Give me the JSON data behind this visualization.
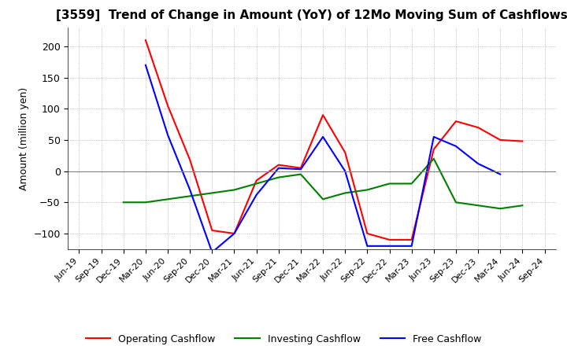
{
  "title": "[3559]  Trend of Change in Amount (YoY) of 12Mo Moving Sum of Cashflows",
  "ylabel": "Amount (million yen)",
  "x_labels": [
    "Jun-19",
    "Sep-19",
    "Dec-19",
    "Mar-20",
    "Jun-20",
    "Sep-20",
    "Dec-20",
    "Mar-21",
    "Jun-21",
    "Sep-21",
    "Dec-21",
    "Mar-22",
    "Jun-22",
    "Sep-22",
    "Dec-22",
    "Mar-23",
    "Jun-23",
    "Sep-23",
    "Dec-23",
    "Mar-24",
    "Jun-24",
    "Sep-24"
  ],
  "operating": [
    null,
    null,
    null,
    210,
    105,
    18,
    -95,
    -100,
    -15,
    10,
    5,
    90,
    30,
    -100,
    -110,
    -110,
    35,
    80,
    70,
    50,
    48,
    null
  ],
  "investing": [
    null,
    null,
    -50,
    -50,
    -45,
    -40,
    -35,
    -30,
    -20,
    -10,
    -5,
    -45,
    -35,
    -30,
    -20,
    -20,
    20,
    -50,
    -55,
    -60,
    -55,
    null
  ],
  "free": [
    null,
    null,
    null,
    170,
    58,
    -30,
    -130,
    -100,
    -38,
    5,
    3,
    55,
    0,
    -120,
    -120,
    -120,
    55,
    40,
    12,
    -5,
    null,
    null
  ],
  "operating_color": "#ff0000",
  "investing_color": "#008000",
  "free_color": "#0000ff",
  "ylim": [
    -125,
    230
  ],
  "yticks": [
    -100,
    -50,
    0,
    50,
    100,
    150,
    200
  ],
  "grid_color": "#aaaaaa",
  "background_color": "#ffffff"
}
